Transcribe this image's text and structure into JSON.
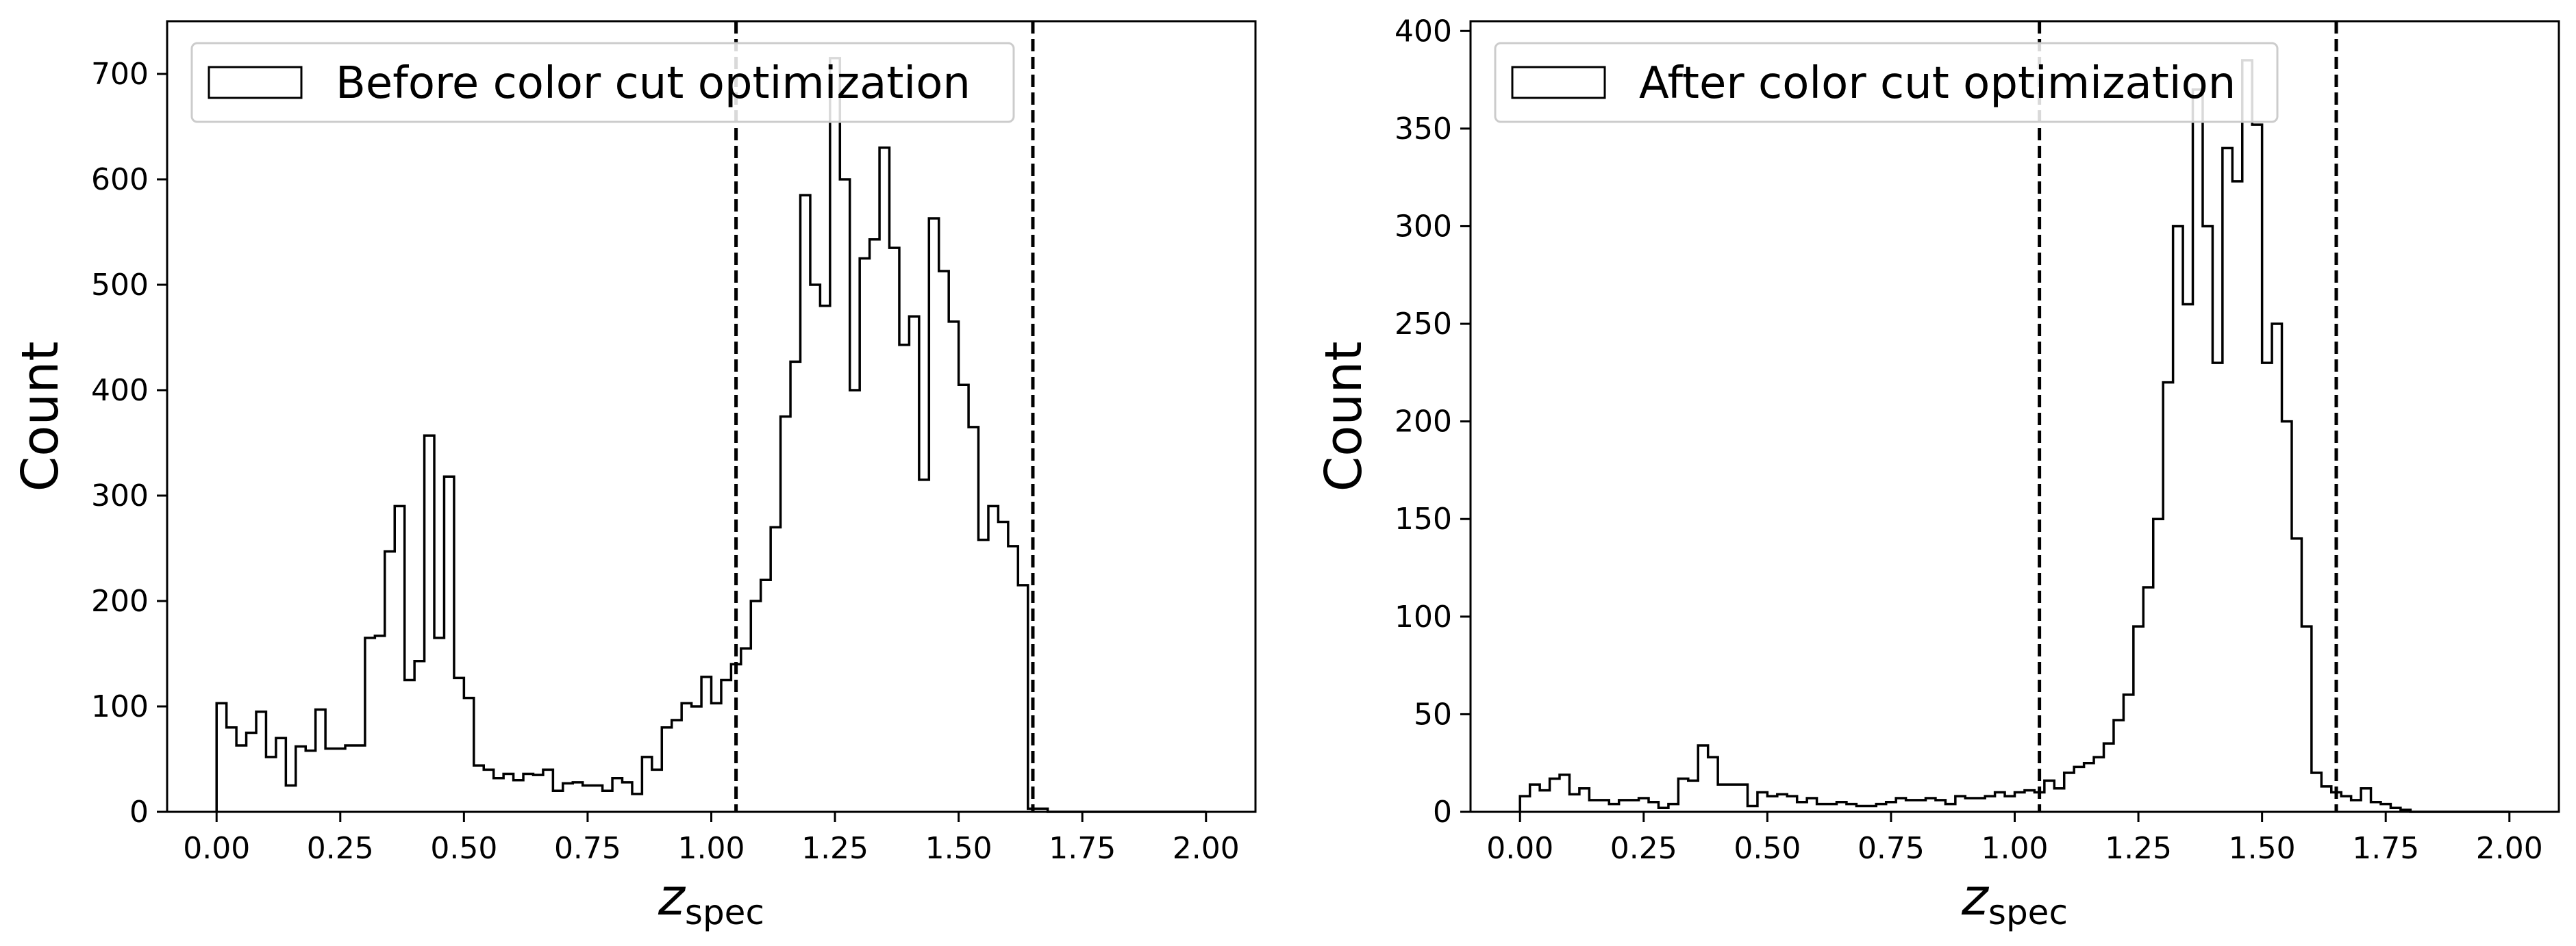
{
  "figure": {
    "colors": {
      "line": "#000000",
      "background": "#ffffff",
      "legend_border": "#cccccc"
    }
  },
  "chart_data": [
    {
      "type": "histogram",
      "legend": "Before color cut optimization",
      "legend_placement": "upper-left",
      "xlabel_main": "z",
      "xlabel_sub": "spec",
      "ylabel": "Count",
      "xlim": [
        -0.1,
        2.1
      ],
      "ylim": [
        0,
        750
      ],
      "xticks": [
        0.0,
        0.25,
        0.5,
        0.75,
        1.0,
        1.25,
        1.5,
        1.75,
        2.0
      ],
      "xtick_labels": [
        "0.00",
        "0.25",
        "0.50",
        "0.75",
        "1.00",
        "1.25",
        "1.50",
        "1.75",
        "2.00"
      ],
      "yticks": [
        0,
        100,
        200,
        300,
        400,
        500,
        600,
        700
      ],
      "ytick_labels": [
        "0",
        "100",
        "200",
        "300",
        "400",
        "500",
        "600",
        "700"
      ],
      "vlines": [
        1.05,
        1.65
      ],
      "grid": false,
      "bin_start": 0.0,
      "bin_width": 0.02,
      "counts": [
        103,
        80,
        63,
        75,
        95,
        52,
        70,
        25,
        62,
        58,
        97,
        60,
        60,
        63,
        63,
        165,
        167,
        247,
        290,
        125,
        143,
        357,
        165,
        318,
        127,
        108,
        44,
        40,
        32,
        36,
        30,
        36,
        35,
        40,
        20,
        27,
        28,
        25,
        25,
        20,
        32,
        28,
        17,
        52,
        40,
        80,
        87,
        103,
        100,
        128,
        103,
        125,
        140,
        155,
        200,
        220,
        270,
        375,
        427,
        585,
        500,
        480,
        715,
        600,
        400,
        525,
        543,
        630,
        535,
        443,
        470,
        315,
        563,
        513,
        465,
        405,
        365,
        258,
        290,
        275,
        252,
        215,
        3,
        3,
        0,
        0,
        0,
        0,
        0,
        0,
        0,
        0,
        0,
        0,
        0,
        0,
        0,
        0,
        0,
        0
      ]
    },
    {
      "type": "histogram",
      "legend": "After color cut optimization",
      "legend_placement": "upper-left",
      "xlabel_main": "z",
      "xlabel_sub": "spec",
      "ylabel": "Count",
      "xlim": [
        -0.1,
        2.1
      ],
      "ylim": [
        0,
        405
      ],
      "xticks": [
        0.0,
        0.25,
        0.5,
        0.75,
        1.0,
        1.25,
        1.5,
        1.75,
        2.0
      ],
      "xtick_labels": [
        "0.00",
        "0.25",
        "0.50",
        "0.75",
        "1.00",
        "1.25",
        "1.50",
        "1.75",
        "2.00"
      ],
      "yticks": [
        0,
        50,
        100,
        150,
        200,
        250,
        300,
        350,
        400
      ],
      "ytick_labels": [
        "0",
        "50",
        "100",
        "150",
        "200",
        "250",
        "300",
        "350",
        "400"
      ],
      "vlines": [
        1.05,
        1.65
      ],
      "grid": false,
      "bin_start": 0.0,
      "bin_width": 0.02,
      "counts": [
        8,
        14,
        11,
        17,
        19,
        9,
        12,
        6,
        6,
        4,
        6,
        6,
        7,
        5,
        2,
        4,
        17,
        16,
        34,
        28,
        14,
        14,
        14,
        3,
        10,
        8,
        9,
        8,
        5,
        7,
        4,
        4,
        5,
        4,
        3,
        3,
        4,
        5,
        7,
        6,
        6,
        7,
        6,
        4,
        8,
        7,
        7,
        8,
        10,
        8,
        10,
        11,
        10,
        16,
        12,
        20,
        23,
        25,
        28,
        35,
        47,
        60,
        95,
        115,
        150,
        220,
        300,
        260,
        370,
        300,
        230,
        340,
        323,
        385,
        352,
        230,
        250,
        200,
        140,
        95,
        20,
        13,
        10,
        8,
        6,
        12,
        5,
        4,
        2,
        1,
        0,
        0,
        0,
        0,
        0,
        0,
        0,
        0,
        0,
        0
      ]
    }
  ]
}
